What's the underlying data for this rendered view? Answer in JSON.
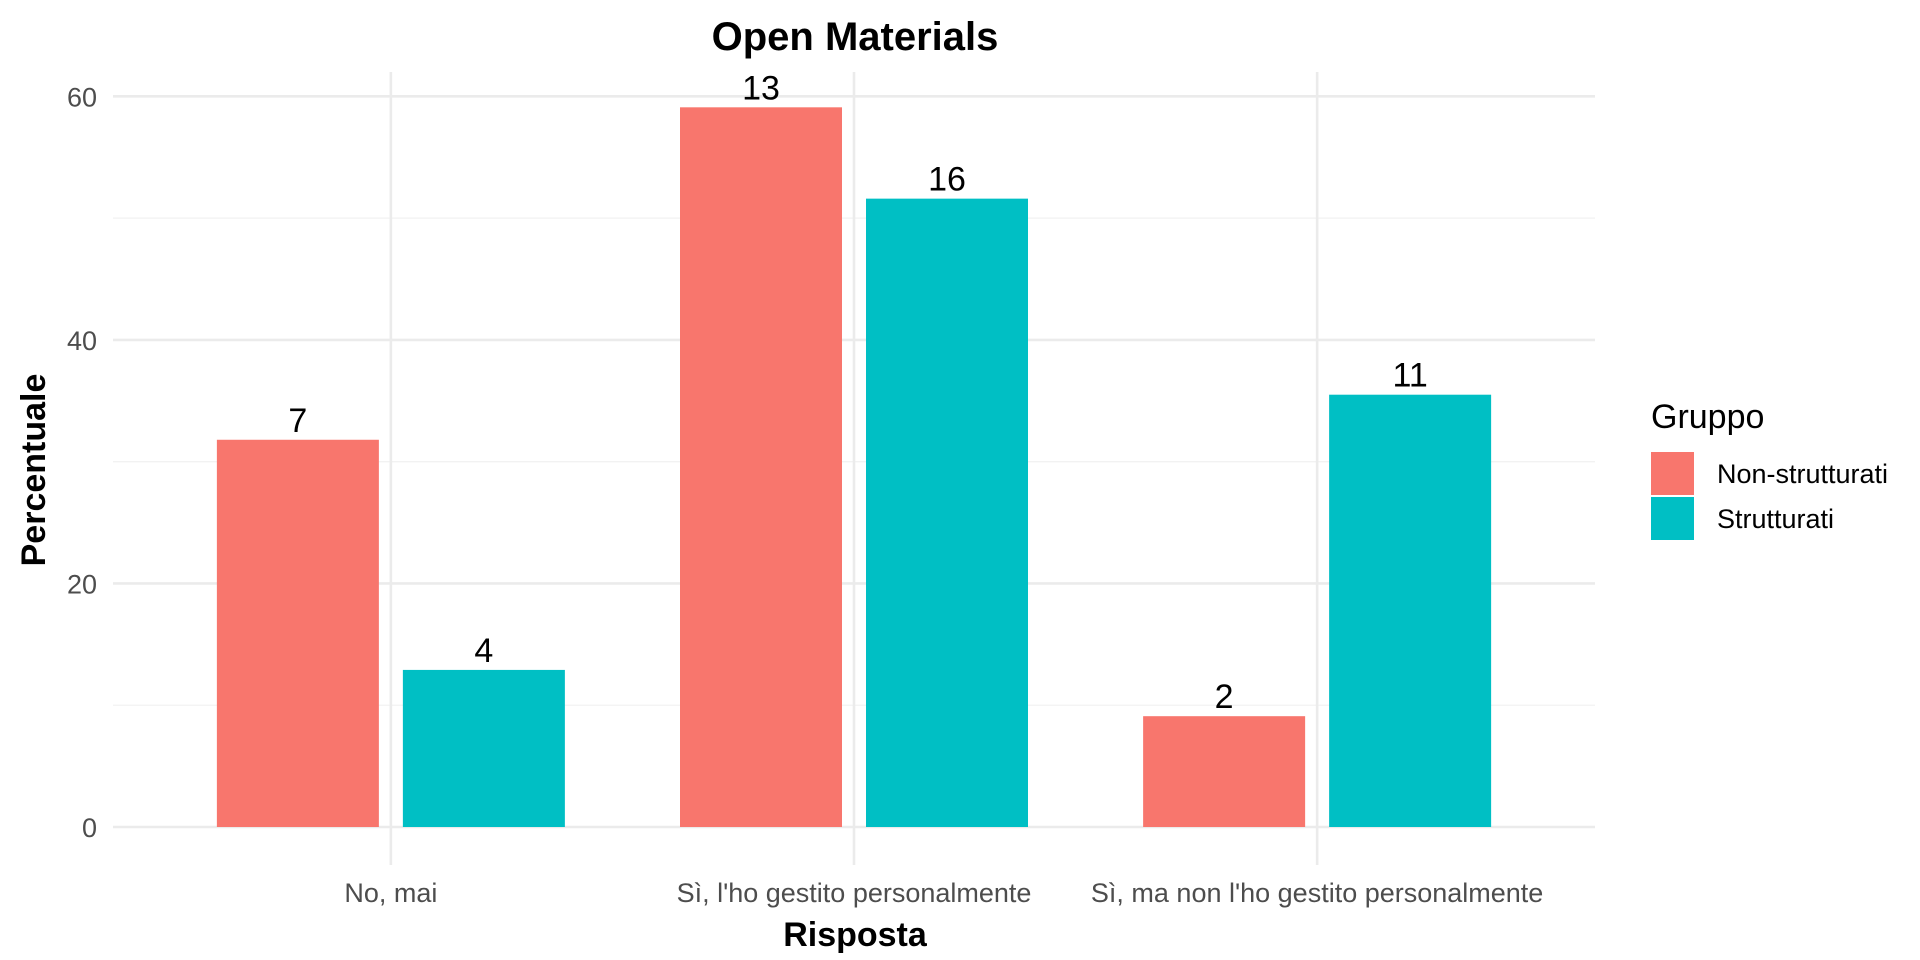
{
  "chart_data": {
    "type": "bar",
    "title": "Open Materials",
    "xlabel": "Risposta",
    "ylabel": "Percentuale",
    "categories": [
      "No, mai",
      "Sì, l'ho gestito personalmente",
      "Sì, ma non l'ho gestito personalmente"
    ],
    "series": [
      {
        "name": "Non-strutturati",
        "color": "#F8766D",
        "values": [
          31.8,
          59.1,
          9.1
        ],
        "labels": [
          "7",
          "13",
          "2"
        ]
      },
      {
        "name": "Strutturati",
        "color": "#00BFC4",
        "values": [
          12.9,
          51.6,
          35.5
        ],
        "labels": [
          "4",
          "16",
          "11"
        ]
      }
    ],
    "ylim": [
      0,
      62
    ],
    "yticks": [
      0,
      20,
      40,
      60
    ],
    "grid": true,
    "legend": {
      "title": "Gruppo",
      "position": "right"
    }
  }
}
